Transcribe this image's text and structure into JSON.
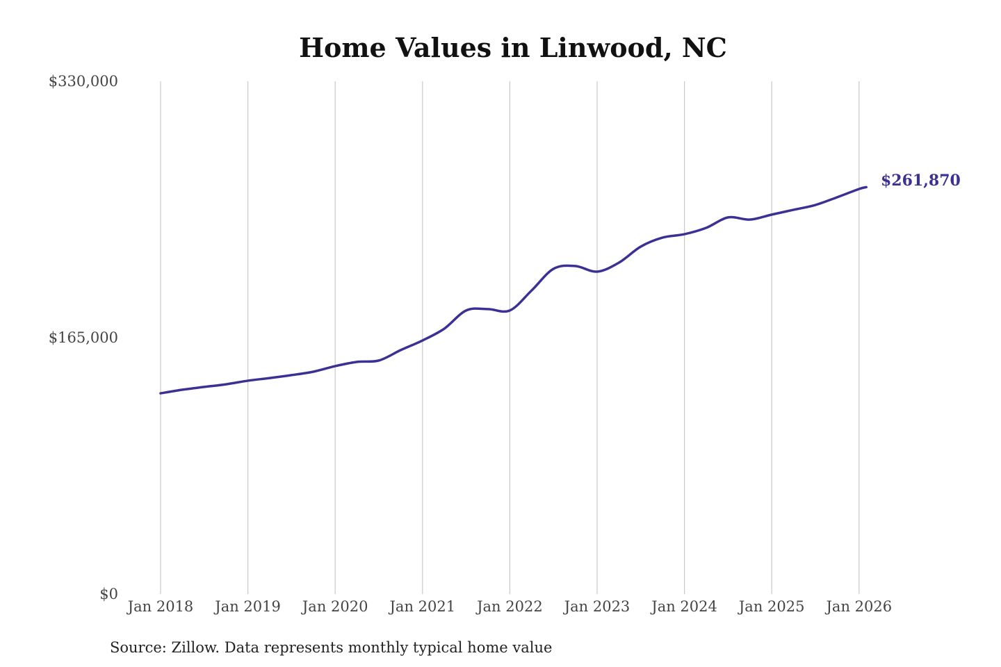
{
  "chart_data": {
    "type": "line",
    "title": "Home Values in Linwood, NC",
    "xlabel": "",
    "ylabel": "",
    "ylim": [
      0,
      330000
    ],
    "yticks": [
      0,
      165000,
      330000
    ],
    "ytick_labels": [
      "$0",
      "$165,000",
      "$330,000"
    ],
    "xticks": [
      "2018-01",
      "2019-01",
      "2020-01",
      "2021-01",
      "2022-01",
      "2023-01",
      "2024-01",
      "2025-01",
      "2026-01"
    ],
    "xtick_labels": [
      "Jan 2018",
      "Jan 2019",
      "Jan 2020",
      "Jan 2021",
      "Jan 2022",
      "Jan 2023",
      "Jan 2024",
      "Jan 2025",
      "Jan 2026"
    ],
    "grid": "vertical",
    "line_color": "#3b3194",
    "end_label": "$261,870",
    "source": "Source: Zillow. Data represents monthly typical home value",
    "series": [
      {
        "x": [
          "2018-01",
          "2018-04",
          "2018-07",
          "2018-10",
          "2019-01",
          "2019-04",
          "2019-07",
          "2019-10",
          "2020-01",
          "2020-04",
          "2020-07",
          "2020-10",
          "2021-01",
          "2021-04",
          "2021-07",
          "2021-10",
          "2022-01",
          "2022-04",
          "2022-07",
          "2022-10",
          "2023-01",
          "2023-04",
          "2023-07",
          "2023-10",
          "2024-01",
          "2024-04",
          "2024-07",
          "2024-10",
          "2025-01",
          "2025-04",
          "2025-07",
          "2025-10",
          "2026-01",
          "2026-02"
        ],
        "y": [
          129200,
          131500,
          133300,
          135000,
          137300,
          139000,
          140900,
          143100,
          146700,
          149400,
          150300,
          157000,
          163200,
          170800,
          182500,
          183400,
          182500,
          195400,
          209300,
          211100,
          207500,
          213300,
          223600,
          229400,
          231600,
          235700,
          242400,
          241000,
          244200,
          247300,
          250400,
          255400,
          260700,
          261870
        ]
      }
    ]
  }
}
